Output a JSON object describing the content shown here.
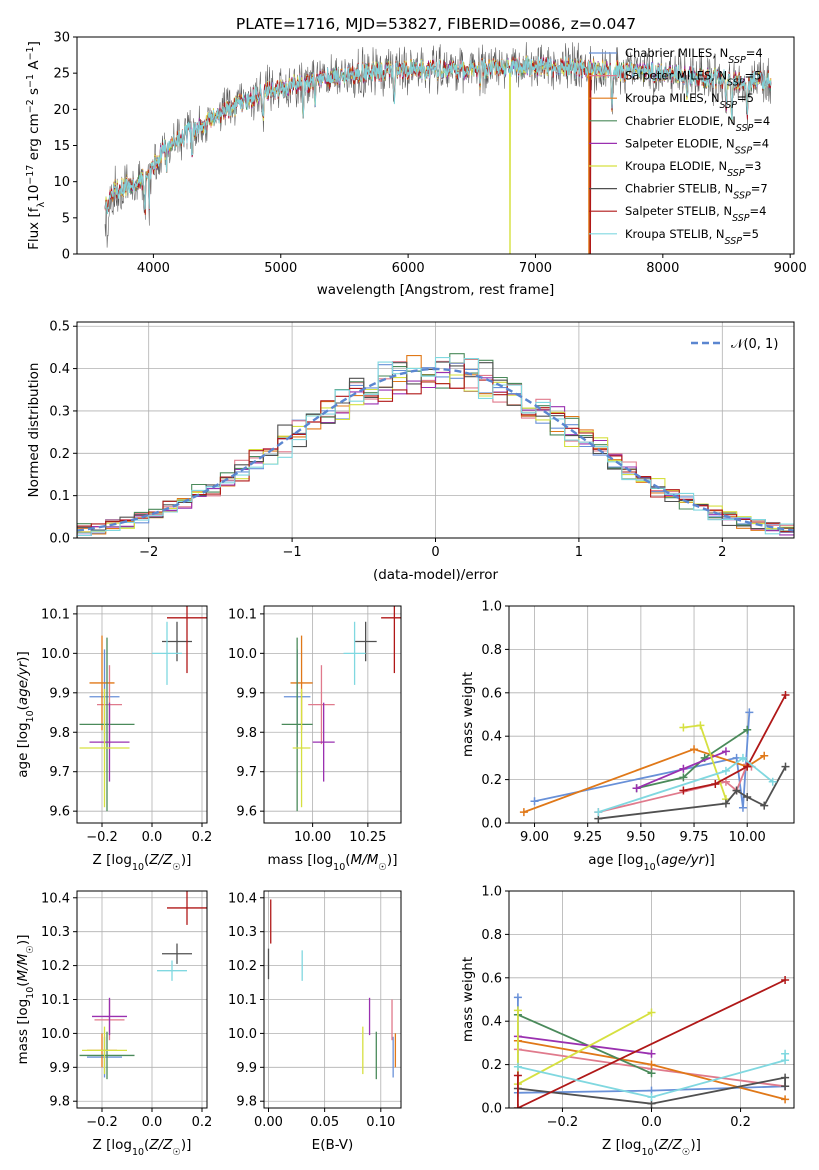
{
  "figure_title": "PLATE=1716, MJD=53827, FIBERID=0086, z=0.047",
  "colors": {
    "Chabrier MILES": "#6890d8",
    "Salpeter MILES": "#e07a8c",
    "Kroupa MILES": "#e07818",
    "Chabrier ELODIE": "#4a8a5a",
    "Salpeter ELODIE": "#9a30b0",
    "Kroupa ELODIE": "#d6e040",
    "Chabrier STELIB": "#505050",
    "Salpeter STELIB": "#b01818",
    "Kroupa STELIB": "#80d8e0"
  },
  "legend_entries": [
    {
      "name": "Chabrier MILES",
      "nssp": "4"
    },
    {
      "name": "Salpeter MILES",
      "nssp": "5"
    },
    {
      "name": "Kroupa MILES",
      "nssp": "5"
    },
    {
      "name": "Chabrier ELODIE",
      "nssp": "4"
    },
    {
      "name": "Salpeter ELODIE",
      "nssp": "4"
    },
    {
      "name": "Kroupa ELODIE",
      "nssp": "3"
    },
    {
      "name": "Chabrier STELIB",
      "nssp": "7"
    },
    {
      "name": "Salpeter STELIB",
      "nssp": "4"
    },
    {
      "name": "Kroupa STELIB",
      "nssp": "5"
    }
  ],
  "chart_data": [
    {
      "id": "spectrum",
      "type": "line",
      "xlabel": "wavelength [Angstrom, rest frame]",
      "ylabel": "Flux [f_λ 10^-17 erg cm^-2 s^-1 A^-1]",
      "xlim": [
        3400,
        9030
      ],
      "ylim": [
        0,
        30
      ],
      "xticks": [
        "4000",
        "5000",
        "6000",
        "7000",
        "8000",
        "9000"
      ],
      "yticks": [
        "0",
        "5",
        "10",
        "15",
        "20",
        "25",
        "30"
      ],
      "grid": false,
      "legend": "top-right",
      "continuum_knots": [
        [
          3650,
          7
        ],
        [
          3700,
          9
        ],
        [
          3900,
          10
        ],
        [
          4000,
          12
        ],
        [
          4100,
          15
        ],
        [
          4300,
          17
        ],
        [
          4500,
          19
        ],
        [
          4700,
          21
        ],
        [
          4900,
          22.5
        ],
        [
          5100,
          23.5
        ],
        [
          5300,
          24
        ],
        [
          5600,
          25
        ],
        [
          6000,
          25.5
        ],
        [
          6500,
          25.5
        ],
        [
          7000,
          26
        ],
        [
          7500,
          25.5
        ],
        [
          8000,
          25
        ],
        [
          8500,
          24
        ],
        [
          8850,
          24
        ]
      ],
      "absorption_features": [
        [
          3933,
          5
        ],
        [
          3968,
          4
        ],
        [
          4102,
          3
        ],
        [
          4304,
          4
        ],
        [
          4861,
          3
        ],
        [
          5175,
          5
        ],
        [
          5270,
          3
        ],
        [
          5890,
          4
        ],
        [
          6563,
          2
        ],
        [
          7600,
          6
        ],
        [
          8190,
          4
        ],
        [
          8498,
          4
        ],
        [
          8542,
          6
        ],
        [
          8662,
          5
        ]
      ],
      "artifacts": [
        [
          "Kroupa ELODIE",
          6800,
          0
        ],
        [
          "Kroupa MILES",
          7420,
          0
        ],
        [
          "Salpeter STELIB",
          7430,
          0
        ]
      ]
    },
    {
      "id": "residuals",
      "type": "histogram",
      "xlabel": "(data-model)/error",
      "ylabel": "Normed distribution",
      "xlim": [
        -2.5,
        2.5
      ],
      "ylim": [
        0,
        0.51
      ],
      "xticks": [
        "−2",
        "−1",
        "0",
        "1",
        "2"
      ],
      "yticks": [
        "0.0",
        "0.1",
        "0.2",
        "0.3",
        "0.4",
        "0.5"
      ],
      "grid": true,
      "legend": "top-right",
      "reference_label": "𝒩(0, 1)",
      "bin_width": 0.1,
      "bin_start": -2.5,
      "series": [
        {
          "name": "Chabrier MILES",
          "seed": 11
        },
        {
          "name": "Salpeter MILES",
          "seed": 23
        },
        {
          "name": "Kroupa MILES",
          "seed": 37
        },
        {
          "name": "Chabrier ELODIE",
          "seed": 41
        },
        {
          "name": "Salpeter ELODIE",
          "seed": 53
        },
        {
          "name": "Kroupa ELODIE",
          "seed": 67
        },
        {
          "name": "Chabrier STELIB",
          "seed": 71
        },
        {
          "name": "Salpeter STELIB",
          "seed": 83
        },
        {
          "name": "Kroupa STELIB",
          "seed": 97
        }
      ]
    },
    {
      "id": "age_vs_Z",
      "type": "scatter",
      "xlabel": "Z [log10(Z/Z☉)]",
      "ylabel": "age [log10(age/yr)]",
      "xlim": [
        -0.3,
        0.22
      ],
      "ylim": [
        9.57,
        10.12
      ],
      "xticks": [
        "−0.2",
        "0.0",
        "0.2"
      ],
      "yticks": [
        "9.6",
        "9.7",
        "9.8",
        "9.9",
        "10.0",
        "10.1"
      ],
      "grid": true,
      "points": [
        {
          "series": "Chabrier MILES",
          "x": -0.19,
          "y": 9.89,
          "xerr": 0.06,
          "yerr": 0.12
        },
        {
          "series": "Salpeter MILES",
          "x": -0.17,
          "y": 9.87,
          "xerr": 0.05,
          "yerr": 0.1
        },
        {
          "series": "Kroupa MILES",
          "x": -0.2,
          "y": 9.925,
          "xerr": 0.05,
          "yerr": 0.12
        },
        {
          "series": "Chabrier ELODIE",
          "x": -0.18,
          "y": 9.82,
          "xerr": 0.11,
          "yerr": 0.22
        },
        {
          "series": "Salpeter ELODIE",
          "x": -0.17,
          "y": 9.775,
          "xerr": 0.08,
          "yerr": 0.1
        },
        {
          "series": "Kroupa ELODIE",
          "x": -0.19,
          "y": 9.76,
          "xerr": 0.1,
          "yerr": 0.15
        },
        {
          "series": "Chabrier STELIB",
          "x": 0.1,
          "y": 10.03,
          "xerr": 0.06,
          "yerr": 0.05
        },
        {
          "series": "Salpeter STELIB",
          "x": 0.14,
          "y": 10.09,
          "xerr": 0.08,
          "yerr": 0.14
        },
        {
          "series": "Kroupa STELIB",
          "x": 0.06,
          "y": 10.0,
          "xerr": 0.06,
          "yerr": 0.08
        }
      ]
    },
    {
      "id": "age_vs_mass",
      "type": "scatter",
      "xlabel": "mass [log10(M/M☉)]",
      "ylabel": "",
      "xlim": [
        9.78,
        10.4
      ],
      "ylim": [
        9.57,
        10.12
      ],
      "xticks": [
        "10.00",
        "10.25"
      ],
      "yticks": [
        "9.6",
        "9.7",
        "9.8",
        "9.9",
        "10.0",
        "10.1"
      ],
      "grid": true,
      "points": [
        {
          "series": "Chabrier MILES",
          "x": 9.93,
          "y": 9.89,
          "xerr": 0.06,
          "yerr": 0.12
        },
        {
          "series": "Salpeter MILES",
          "x": 10.04,
          "y": 9.87,
          "xerr": 0.06,
          "yerr": 0.1
        },
        {
          "series": "Kroupa MILES",
          "x": 9.95,
          "y": 9.925,
          "xerr": 0.05,
          "yerr": 0.12
        },
        {
          "series": "Chabrier ELODIE",
          "x": 9.93,
          "y": 9.82,
          "xerr": 0.07,
          "yerr": 0.22
        },
        {
          "series": "Salpeter ELODIE",
          "x": 10.05,
          "y": 9.775,
          "xerr": 0.05,
          "yerr": 0.1
        },
        {
          "series": "Kroupa ELODIE",
          "x": 9.95,
          "y": 9.76,
          "xerr": 0.04,
          "yerr": 0.15
        },
        {
          "series": "Chabrier STELIB",
          "x": 10.24,
          "y": 10.03,
          "xerr": 0.05,
          "yerr": 0.05
        },
        {
          "series": "Salpeter STELIB",
          "x": 10.37,
          "y": 10.09,
          "xerr": 0.06,
          "yerr": 0.14
        },
        {
          "series": "Kroupa STELIB",
          "x": 10.19,
          "y": 10.0,
          "xerr": 0.05,
          "yerr": 0.08
        }
      ]
    },
    {
      "id": "weight_vs_age",
      "type": "line",
      "xlabel": "age [log10(age/yr)]",
      "ylabel": "mass weight",
      "xlim": [
        8.88,
        10.22
      ],
      "ylim": [
        0,
        1
      ],
      "xticks": [
        "9.00",
        "9.25",
        "9.50",
        "9.75",
        "10.00"
      ],
      "yticks": [
        "0.0",
        "0.2",
        "0.4",
        "0.6",
        "0.8",
        "1.0"
      ],
      "grid": true,
      "series": [
        {
          "name": "Chabrier MILES",
          "x": [
            9.0,
            9.95,
            9.98,
            10.01
          ],
          "y": [
            0.1,
            0.3,
            0.07,
            0.51
          ]
        },
        {
          "name": "Salpeter MILES",
          "x": [
            9.3,
            9.9,
            9.95,
            10.0,
            10.02
          ],
          "y": [
            0.05,
            0.19,
            0.15,
            0.27,
            0.26
          ]
        },
        {
          "name": "Kroupa MILES",
          "x": [
            8.95,
            9.75,
            10.0,
            10.08
          ],
          "y": [
            0.05,
            0.34,
            0.26,
            0.31
          ]
        },
        {
          "name": "Chabrier ELODIE",
          "x": [
            9.48,
            9.7,
            9.8,
            10.0
          ],
          "y": [
            0.16,
            0.21,
            0.3,
            0.43
          ]
        },
        {
          "name": "Salpeter ELODIE",
          "x": [
            9.48,
            9.7,
            9.9
          ],
          "y": [
            0.16,
            0.25,
            0.33
          ]
        },
        {
          "name": "Kroupa ELODIE",
          "x": [
            9.7,
            9.78,
            9.9
          ],
          "y": [
            0.44,
            0.45,
            0.11
          ]
        },
        {
          "name": "Chabrier STELIB",
          "x": [
            9.3,
            9.9,
            9.95,
            10.0,
            10.08,
            10.18
          ],
          "y": [
            0.02,
            0.09,
            0.15,
            0.12,
            0.08,
            0.26
          ]
        },
        {
          "name": "Salpeter STELIB",
          "x": [
            9.7,
            9.85,
            10.0,
            10.18
          ],
          "y": [
            0.15,
            0.18,
            0.26,
            0.59
          ]
        },
        {
          "name": "Kroupa STELIB",
          "x": [
            9.3,
            9.9,
            9.98,
            10.12
          ],
          "y": [
            0.05,
            0.24,
            0.3,
            0.19
          ]
        }
      ]
    },
    {
      "id": "mass_vs_Z",
      "type": "scatter",
      "xlabel": "Z [log10(Z/Z☉)]",
      "ylabel": "mass [log10(M/M☉)]",
      "xlim": [
        -0.3,
        0.22
      ],
      "ylim": [
        9.78,
        10.42
      ],
      "xticks": [
        "−0.2",
        "0.0",
        "0.2"
      ],
      "yticks": [
        "9.8",
        "9.9",
        "10.0",
        "10.1",
        "10.2",
        "10.3",
        "10.4"
      ],
      "grid": true,
      "points": [
        {
          "series": "Chabrier MILES",
          "x": -0.19,
          "y": 9.93,
          "xerr": 0.07,
          "yerr": 0.06
        },
        {
          "series": "Salpeter MILES",
          "x": -0.17,
          "y": 10.04,
          "xerr": 0.06,
          "yerr": 0.06
        },
        {
          "series": "Kroupa MILES",
          "x": -0.2,
          "y": 9.95,
          "xerr": 0.06,
          "yerr": 0.05
        },
        {
          "series": "Chabrier ELODIE",
          "x": -0.18,
          "y": 9.935,
          "xerr": 0.11,
          "yerr": 0.07
        },
        {
          "series": "Salpeter ELODIE",
          "x": -0.17,
          "y": 10.05,
          "xerr": 0.07,
          "yerr": 0.055
        },
        {
          "series": "Kroupa ELODIE",
          "x": -0.19,
          "y": 9.95,
          "xerr": 0.09,
          "yerr": 0.07
        },
        {
          "series": "Chabrier STELIB",
          "x": 0.1,
          "y": 10.235,
          "xerr": 0.06,
          "yerr": 0.03
        },
        {
          "series": "Salpeter STELIB",
          "x": 0.14,
          "y": 10.37,
          "xerr": 0.08,
          "yerr": 0.05
        },
        {
          "series": "Kroupa STELIB",
          "x": 0.08,
          "y": 10.185,
          "xerr": 0.06,
          "yerr": 0.03
        }
      ]
    },
    {
      "id": "mass_vs_ebv",
      "type": "scatter",
      "xlabel": "E(B-V)",
      "ylabel": "",
      "xlim": [
        -0.004,
        0.118
      ],
      "ylim": [
        9.78,
        10.42
      ],
      "xticks": [
        "0.00",
        "0.05",
        "0.10"
      ],
      "yticks": [
        "9.8",
        "9.9",
        "10.0",
        "10.1",
        "10.2",
        "10.3",
        "10.4"
      ],
      "grid": true,
      "points": [
        {
          "series": "Chabrier MILES",
          "x": 0.111,
          "y": 9.93,
          "xerr": 0,
          "yerr": 0.06
        },
        {
          "series": "Salpeter MILES",
          "x": 0.11,
          "y": 10.04,
          "xerr": 0,
          "yerr": 0.06
        },
        {
          "series": "Kroupa MILES",
          "x": 0.113,
          "y": 9.95,
          "xerr": 0,
          "yerr": 0.05
        },
        {
          "series": "Chabrier ELODIE",
          "x": 0.096,
          "y": 9.935,
          "xerr": 0,
          "yerr": 0.07
        },
        {
          "series": "Salpeter ELODIE",
          "x": 0.09,
          "y": 10.05,
          "xerr": 0,
          "yerr": 0.055
        },
        {
          "series": "Kroupa ELODIE",
          "x": 0.084,
          "y": 9.95,
          "xerr": 0,
          "yerr": 0.07
        },
        {
          "series": "Chabrier STELIB",
          "x": 0.0,
          "y": 10.205,
          "xerr": 0,
          "yerr": 0.045
        },
        {
          "series": "Salpeter STELIB",
          "x": 0.002,
          "y": 10.33,
          "xerr": 0,
          "yerr": 0.065
        },
        {
          "series": "Kroupa STELIB",
          "x": 0.03,
          "y": 10.2,
          "xerr": 0,
          "yerr": 0.045
        }
      ]
    },
    {
      "id": "weight_vs_Z",
      "type": "line",
      "xlabel": "Z [log10(Z/Z☉)]",
      "ylabel": "mass weight",
      "xlim": [
        -0.32,
        0.32
      ],
      "ylim": [
        0,
        1
      ],
      "xticks": [
        "−0.2",
        "0.0",
        "0.2"
      ],
      "yticks": [
        "0.0",
        "0.2",
        "0.4",
        "0.6",
        "0.8",
        "1.0"
      ],
      "grid": true,
      "series": [
        {
          "name": "Chabrier MILES",
          "x": [
            -0.3,
            -0.3,
            0.0,
            0.3
          ],
          "y": [
            0.51,
            0.07,
            0.08,
            0.1
          ]
        },
        {
          "name": "Salpeter MILES",
          "x": [
            -0.3,
            0.0,
            0.3
          ],
          "y": [
            0.27,
            0.18,
            0.1
          ]
        },
        {
          "name": "Kroupa MILES",
          "x": [
            -0.3,
            0.0,
            0.3
          ],
          "y": [
            0.31,
            0.2,
            0.04
          ]
        },
        {
          "name": "Chabrier ELODIE",
          "x": [
            -0.3,
            0.0
          ],
          "y": [
            0.43,
            0.16
          ]
        },
        {
          "name": "Salpeter ELODIE",
          "x": [
            -0.3,
            0.0
          ],
          "y": [
            0.33,
            0.25
          ]
        },
        {
          "name": "Kroupa ELODIE",
          "x": [
            -0.3,
            -0.3,
            0.0
          ],
          "y": [
            0.45,
            0.11,
            0.44
          ]
        },
        {
          "name": "Chabrier STELIB",
          "x": [
            -0.3,
            0.0,
            0.3,
            0.3
          ],
          "y": [
            0.09,
            0.02,
            0.14,
            0.1
          ]
        },
        {
          "name": "Salpeter STELIB",
          "x": [
            -0.3,
            -0.3,
            0.3
          ],
          "y": [
            0.15,
            0.0,
            0.59
          ]
        },
        {
          "name": "Kroupa STELIB",
          "x": [
            -0.3,
            0.0,
            0.3,
            0.3
          ],
          "y": [
            0.19,
            0.05,
            0.22,
            0.25
          ]
        }
      ]
    }
  ]
}
